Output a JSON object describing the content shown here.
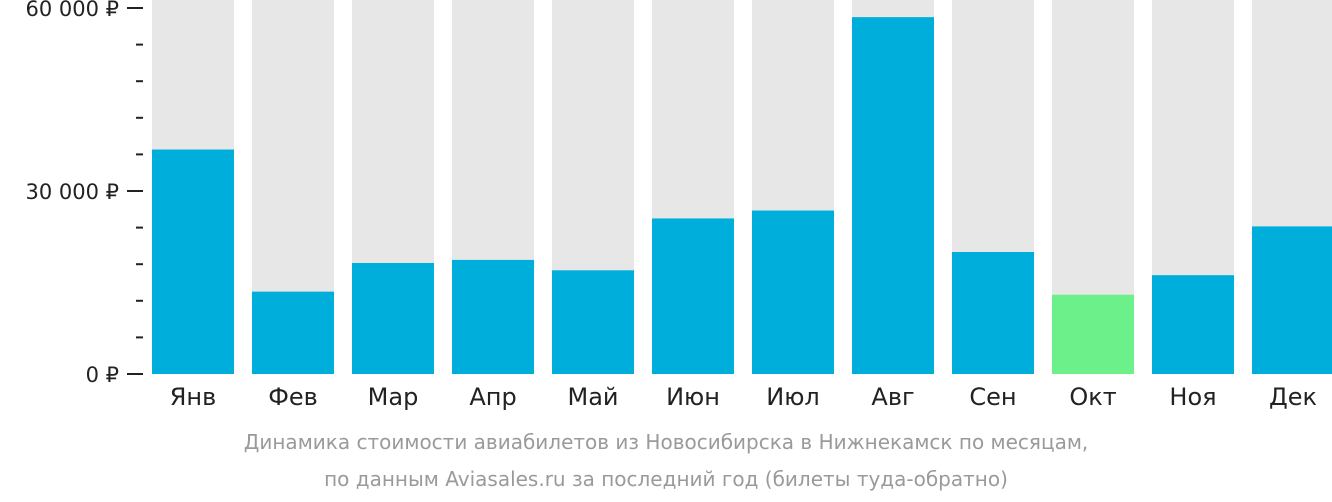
{
  "chart_data": {
    "type": "bar",
    "categories": [
      "Янв",
      "Фев",
      "Мар",
      "Апр",
      "Май",
      "Июн",
      "Июл",
      "Авг",
      "Сен",
      "Окт",
      "Ноя",
      "Дек"
    ],
    "values": [
      36800,
      13500,
      18200,
      18700,
      17000,
      25500,
      26800,
      58500,
      20000,
      13000,
      16200,
      24200
    ],
    "ylim": [
      0,
      60000
    ],
    "yticks": [
      {
        "value": 0,
        "label": "0 ₽"
      },
      {
        "value": 30000,
        "label": "30 000 ₽"
      },
      {
        "value": 60000,
        "label": "60 000 ₽"
      }
    ],
    "minor_tick_step": 6000,
    "highlight_index": 9,
    "grid": false,
    "legend": "none"
  },
  "caption": {
    "line1": "Динамика стоимости авиабилетов из Новосибирска в Нижнекамск по месяцам,",
    "line2": "по данным Aviasales.ru за последний год (билеты туда-обратно)"
  },
  "colors": {
    "bar": "#00aedc",
    "highlight": "#6cf08a",
    "background_bar": "#e7e7e7",
    "axis": "#222222",
    "caption": "#9a9a9a"
  }
}
